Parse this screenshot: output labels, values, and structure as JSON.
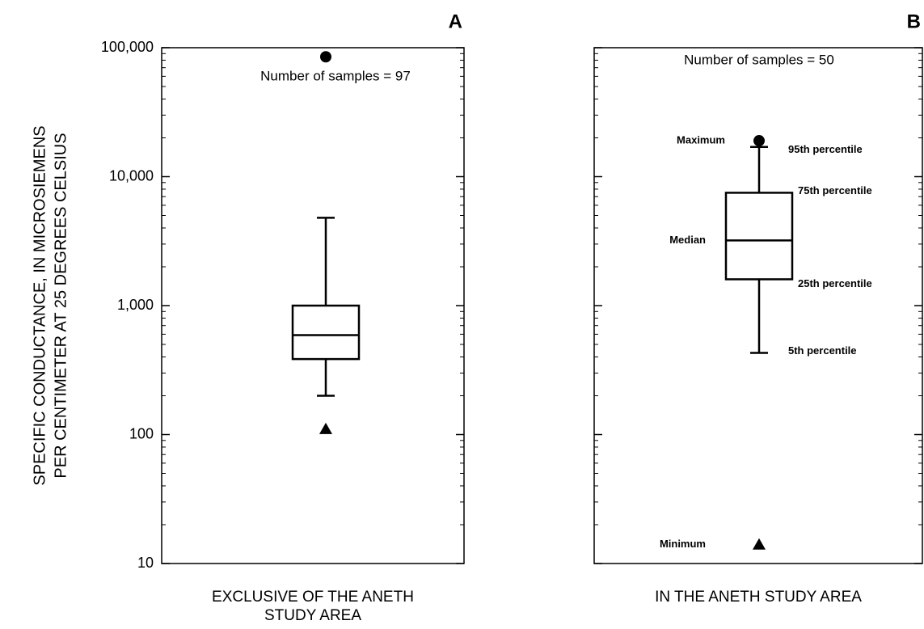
{
  "chart_data": [
    {
      "type": "box",
      "panel_label": "A",
      "annotation": "Number of samples = 97",
      "xlabel": [
        "EXCLUSIVE OF THE ANETH",
        "STUDY AREA"
      ],
      "ylabel": [
        "SPECIFIC CONDUCTANCE, IN MICROSIEMENS",
        "PER CENTIMETER AT 25 DEGREES CELSIUS"
      ],
      "log_y": true,
      "ylim": [
        10,
        100000
      ],
      "tick_labels": true,
      "yticks": [
        10,
        100,
        {
          "value": 1000,
          "label": "1,000"
        },
        {
          "value": 10000,
          "label": "10,000"
        },
        {
          "value": 100000,
          "label": "100,000"
        }
      ],
      "minor_yticks": [
        20,
        30,
        40,
        50,
        60,
        70,
        80,
        90,
        200,
        300,
        400,
        500,
        600,
        700,
        800,
        900,
        2000,
        3000,
        4000,
        5000,
        6000,
        7000,
        8000,
        9000,
        20000,
        30000,
        40000,
        50000,
        60000,
        70000,
        80000,
        90000
      ],
      "color": "#000000",
      "stats": {
        "min": 110,
        "p5": 200,
        "p25": 385,
        "median": 590,
        "p75": 1000,
        "p95": 4800,
        "max": 85000
      }
    },
    {
      "type": "box",
      "panel_label": "B",
      "annotation": "Number of samples = 50",
      "xlabel": [
        "IN THE ANETH STUDY AREA"
      ],
      "log_y": true,
      "ylim": [
        10,
        100000
      ],
      "tick_labels": false,
      "yticks": [
        10,
        100,
        1000,
        10000,
        100000
      ],
      "minor_yticks": [
        20,
        30,
        40,
        50,
        60,
        70,
        80,
        90,
        200,
        300,
        400,
        500,
        600,
        700,
        800,
        900,
        2000,
        3000,
        4000,
        5000,
        6000,
        7000,
        8000,
        9000,
        20000,
        30000,
        40000,
        50000,
        60000,
        70000,
        80000,
        90000
      ],
      "color": "#000000",
      "stats": {
        "min": 14,
        "p5": 430,
        "p25": 1600,
        "median": 3200,
        "p75": 7500,
        "p95": 17000,
        "max": 19000
      },
      "box_labels": {
        "max": "Maximum",
        "p95": "95th percentile",
        "p75": "75th percentile",
        "median": "Median",
        "p25": "25th percentile",
        "p5": "5th percentile",
        "min": "Minimum"
      }
    }
  ]
}
